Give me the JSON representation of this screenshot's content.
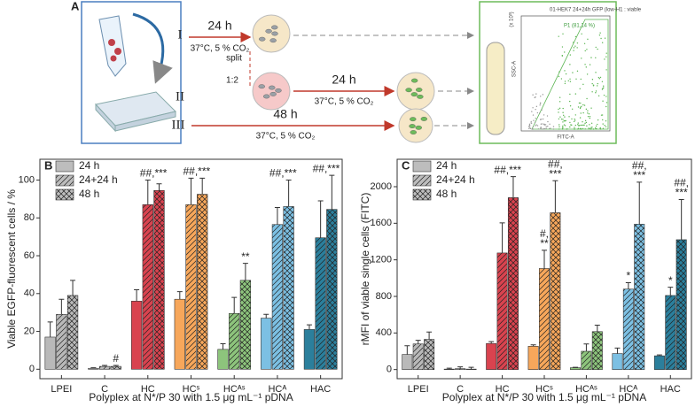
{
  "panel_a": {
    "label": "A",
    "routes": [
      {
        "numeral": "I",
        "time": "24 h",
        "conditions": "37°C, 5 % CO₂"
      },
      {
        "numeral": "II",
        "split": "split",
        "ratio": "1:2",
        "time": "24 h",
        "conditions": "37°C, 5 % CO₂"
      },
      {
        "numeral": "III",
        "time": "48 h",
        "conditions": "37°C, 5 % CO₂"
      }
    ],
    "flow_plot": {
      "title": "01-HEK7 24+24h GFP (low-H1 : viable",
      "gate": "P1 (81,14 %)",
      "y_label": "SSC-A",
      "x_label": "FITC-A",
      "y_unit": "(x 10³)"
    }
  },
  "chart_data": [
    {
      "type": "bar",
      "panel": "B",
      "ylabel": "Viable EGFP-fluorescent cells / %",
      "xlabel": "Polyplex at N*/P 30 with 1.5 μg mL⁻¹ pDNA",
      "categories": [
        "LPEI",
        "C",
        "HC",
        "HCˢ",
        "HCᴬˢ",
        "HCᴬ",
        "HAC"
      ],
      "category_colors": [
        "#b9b9b9",
        "#b9b9b9",
        "#d9434f",
        "#f7a75b",
        "#8dc47c",
        "#7cc0e3",
        "#2b7f9c"
      ],
      "series": [
        {
          "name": "24 h",
          "color": "#bdbdbd",
          "pattern": "solid",
          "values": [
            17,
            0.5,
            36,
            37,
            10.5,
            27,
            21
          ],
          "errors": [
            8,
            0.3,
            6,
            4,
            3,
            2,
            2.5
          ]
        },
        {
          "name": "24+24 h",
          "color": "#bdbdbd",
          "pattern": "diagonal",
          "values": [
            29,
            1.5,
            87,
            87,
            29.5,
            76.5,
            69.5
          ],
          "errors": [
            8,
            0.5,
            13,
            14,
            8.5,
            9,
            19.5
          ]
        },
        {
          "name": "48 h",
          "color": "#bdbdbd",
          "pattern": "cross",
          "values": [
            39,
            1.5,
            94.5,
            92.5,
            47,
            86,
            84.5
          ],
          "errors": [
            8,
            0.5,
            3.5,
            8.5,
            9,
            14,
            18
          ]
        }
      ],
      "ylim": [
        -5,
        111
      ],
      "yticks": [
        0,
        20,
        40,
        60,
        80,
        100
      ],
      "annotations": [
        {
          "text": [
            "#"
          ],
          "category": "C",
          "series": [
            "48 h"
          ]
        },
        {
          "text": [
            "##,***"
          ],
          "category": "HC",
          "series": [
            "24+24 h",
            "48 h"
          ]
        },
        {
          "text": [
            "##,***"
          ],
          "category": "HCˢ",
          "series": [
            "24+24 h",
            "48 h"
          ]
        },
        {
          "text": [
            "**"
          ],
          "category": "HCᴬˢ",
          "series": [
            "48 h"
          ]
        },
        {
          "text": [
            "##,***"
          ],
          "category": "HCᴬ",
          "series": [
            "24+24 h",
            "48 h"
          ]
        },
        {
          "text": [
            "##,***"
          ],
          "category": "HAC",
          "series": [
            "24+24 h",
            "48 h"
          ]
        }
      ]
    },
    {
      "type": "bar",
      "panel": "C",
      "ylabel": "rMFI of viable single cells (FITC)",
      "xlabel": "Polyplex at N*/P 30 with 1.5 μg mL⁻¹ pDNA",
      "categories": [
        "LPEI",
        "C",
        "HC",
        "HCˢ",
        "HCᴬˢ",
        "HCᴬ",
        "HAC"
      ],
      "category_colors": [
        "#b9b9b9",
        "#b9b9b9",
        "#d9434f",
        "#f7a75b",
        "#8dc47c",
        "#7cc0e3",
        "#2b7f9c"
      ],
      "series": [
        {
          "name": "24 h",
          "color": "#bdbdbd",
          "pattern": "solid",
          "values": [
            165,
            5,
            285,
            255,
            20,
            175,
            150
          ],
          "errors": [
            95,
            10,
            20,
            15,
            5,
            60,
            10
          ]
        },
        {
          "name": "24+24 h",
          "color": "#bdbdbd",
          "pattern": "diagonal",
          "values": [
            280,
            10,
            1275,
            1105,
            200,
            880,
            810
          ],
          "errors": [
            40,
            20,
            330,
            200,
            80,
            70,
            90
          ]
        },
        {
          "name": "48 h",
          "color": "#bdbdbd",
          "pattern": "cross",
          "values": [
            330,
            5,
            1880,
            1715,
            415,
            1590,
            1420
          ],
          "errors": [
            80,
            20,
            230,
            350,
            70,
            460,
            440
          ]
        }
      ],
      "ylim": [
        -100,
        2300
      ],
      "yticks": [
        0,
        400,
        800,
        1200,
        1600,
        2000
      ],
      "annotations": [
        {
          "text": [
            "##,***"
          ],
          "category": "HC",
          "series": [
            "24+24 h",
            "48 h"
          ]
        },
        {
          "text": [
            "#,",
            "**"
          ],
          "category": "HCˢ",
          "series": [
            "24+24 h"
          ]
        },
        {
          "text": [
            "##,",
            "***"
          ],
          "category": "HCˢ",
          "series": [
            "48 h"
          ]
        },
        {
          "text": [
            "*"
          ],
          "category": "HCᴬ",
          "series": [
            "24+24 h"
          ]
        },
        {
          "text": [
            "##,",
            "***"
          ],
          "category": "HCᴬ",
          "series": [
            "48 h"
          ]
        },
        {
          "text": [
            "*"
          ],
          "category": "HAC",
          "series": [
            "24+24 h"
          ]
        },
        {
          "text": [
            "##,",
            "***"
          ],
          "category": "HAC",
          "series": [
            "48 h"
          ]
        }
      ]
    }
  ]
}
